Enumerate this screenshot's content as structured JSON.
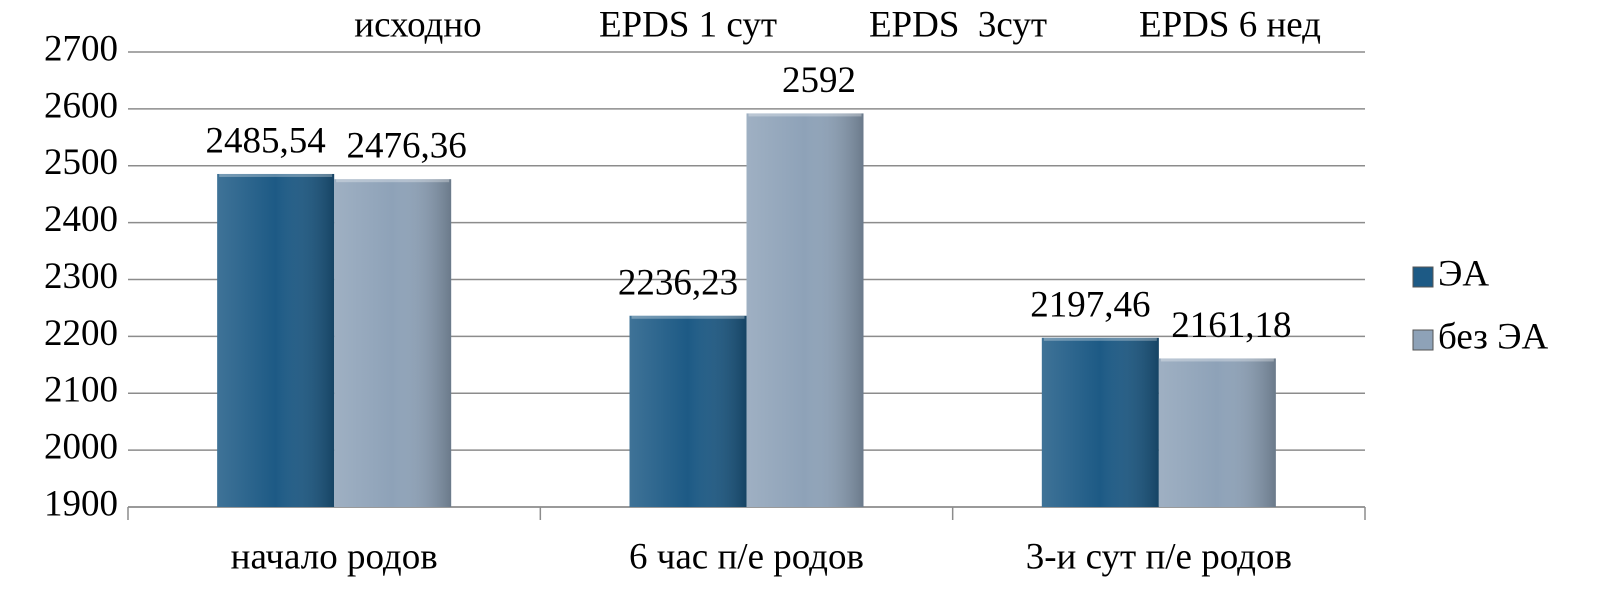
{
  "chart_data": {
    "type": "bar",
    "annotations": [
      "исходно",
      "EPDS 1 сут",
      "EPDS  3сут",
      "EPDS 6 нед"
    ],
    "categories": [
      "начало родов",
      "6 час п/е родов",
      "3-и сут п/е родов"
    ],
    "series": [
      {
        "name": "ЭА",
        "color": "#1d5a85",
        "values": [
          2485.54,
          2236.23,
          2197.46
        ],
        "value_labels": [
          "2485,54",
          "2236,23",
          "2197,46"
        ]
      },
      {
        "name": "без ЭА",
        "color": "#8ea2b8",
        "values": [
          2476.36,
          2592,
          2161.18
        ],
        "value_labels": [
          "2476,36",
          "2592",
          "2161,18"
        ]
      }
    ],
    "ylim": [
      1900,
      2700
    ],
    "yticks": [
      1900,
      2000,
      2100,
      2200,
      2300,
      2400,
      2500,
      2600,
      2700
    ],
    "grid": true,
    "legend": "right"
  }
}
